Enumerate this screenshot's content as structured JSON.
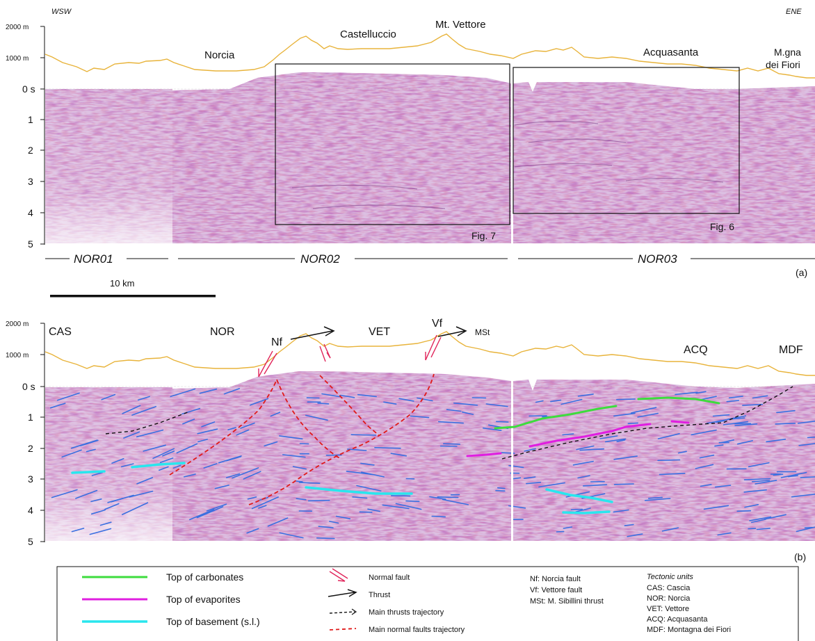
{
  "panel_a": {
    "dir_left": "WSW",
    "dir_right": "ENE",
    "elev_2000": "2000 m",
    "elev_1000": "1000 m",
    "time_ticks": [
      "0 s",
      "1",
      "2",
      "3",
      "4",
      "5"
    ],
    "places": {
      "norcia": "Norcia",
      "castelluccio": "Castelluccio",
      "vettore": "Mt. Vettore",
      "acquasanta": "Acquasanta",
      "mgna1": "M.gna",
      "mgna2": "dei Fiori"
    },
    "boxes": {
      "fig7": "Fig. 7",
      "fig6": "Fig. 6"
    },
    "lines": {
      "nor01": "NOR01",
      "nor02": "NOR02",
      "nor03": "NOR03"
    },
    "panel_letter": "(a)",
    "scale": "10 km"
  },
  "panel_b": {
    "elev_2000": "2000 m",
    "elev_1000": "1000 m",
    "time_ticks": [
      "0 s",
      "1",
      "2",
      "3",
      "4",
      "5"
    ],
    "units": {
      "cas": "CAS",
      "nor": "NOR",
      "vet": "VET",
      "acq": "ACQ",
      "mdf": "MDF"
    },
    "faults": {
      "nf": "Nf",
      "vf": "Vf",
      "mst": "MSt"
    },
    "panel_letter": "(b)"
  },
  "legend": {
    "horizons": [
      {
        "label": "Top of carbonates",
        "color": "#3ddc3d"
      },
      {
        "label": "Top of evaporites",
        "color": "#e01ee0"
      },
      {
        "label": "Top of basement (s.l.)",
        "color": "#29e6ee"
      }
    ],
    "symbols": [
      {
        "label": "Normal fault"
      },
      {
        "label": "Thrust"
      },
      {
        "label": "Main thrusts trajectory"
      },
      {
        "label": "Main normal faults trajectory"
      }
    ],
    "abbrev": [
      "Nf: Norcia fault",
      "Vf: Vettore fault",
      "MSt: M. Sibillini thrust"
    ],
    "tectonic_title": "Tectonic units",
    "tectonic": [
      "CAS: Cascia",
      "NOR: Norcia",
      "VET: Vettore",
      "ACQ: Acquasanta",
      "MDF: Montagna dei Fiori"
    ]
  },
  "colors": {
    "topography": "#e8b33a",
    "seismic_base": "#d8b7dd",
    "reflector": "#3a6fe0",
    "normal_fault": "#e0245a",
    "thrust_dash": "#111111",
    "normal_dash": "#e01a1a"
  }
}
